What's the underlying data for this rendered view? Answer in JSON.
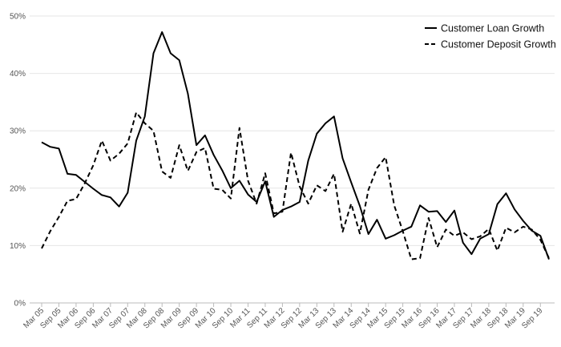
{
  "chart_data": {
    "type": "line",
    "categories": [
      "Mar 05",
      "Jun 05",
      "Sep 05",
      "Dec 05",
      "Mar 06",
      "Jun 06",
      "Sep 06",
      "Dec 06",
      "Mar 07",
      "Jun 07",
      "Sep 07",
      "Dec 07",
      "Mar 08",
      "Jun 08",
      "Sep 08",
      "Dec 08",
      "Mar 09",
      "Jun 09",
      "Sep 09",
      "Dec 09",
      "Mar 10",
      "Jun 10",
      "Sep 10",
      "Dec 10",
      "Mar 11",
      "Jun 11",
      "Sep 11",
      "Dec 11",
      "Mar 12",
      "Jun 12",
      "Sep 12",
      "Dec 12",
      "Mar 13",
      "Jun 13",
      "Sep 13",
      "Dec 13",
      "Mar 14",
      "Jun 14",
      "Sep 14",
      "Dec 14",
      "Mar 15",
      "Jun 15",
      "Sep 15",
      "Dec 15",
      "Mar 16",
      "Jun 16",
      "Sep 16",
      "Dec 16",
      "Mar 17",
      "Jun 17",
      "Sep 17",
      "Dec 17",
      "Mar 18",
      "Jun 18",
      "Sep 18",
      "Dec 18",
      "Mar 19",
      "Jun 19",
      "Sep 19",
      "Dec 19"
    ],
    "x_tick_labels": [
      "Mar 05",
      "Sep 05",
      "Mar 06",
      "Sep 06",
      "Mar 07",
      "Sep 07",
      "Mar 08",
      "Sep 08",
      "Mar 09",
      "Sep 09",
      "Mar 10",
      "Sep 10",
      "Mar 11",
      "Sep 11",
      "Mar 12",
      "Sep 12",
      "Mar 13",
      "Sep 13",
      "Mar 14",
      "Sep 14",
      "Mar 15",
      "Sep 15",
      "Mar 16",
      "Sep 16",
      "Mar 17",
      "Sep 17",
      "Mar 18",
      "Sep 18",
      "Mar 19",
      "Sep 19"
    ],
    "y_tick_labels": [
      "0%",
      "10%",
      "20%",
      "30%",
      "40%",
      "50%"
    ],
    "series": [
      {
        "name": "Customer Loan Growth",
        "style": "solid",
        "values": [
          28.0,
          27.2,
          26.9,
          22.5,
          22.3,
          21.1,
          19.9,
          18.8,
          18.4,
          16.8,
          19.2,
          28.3,
          32.5,
          43.5,
          47.2,
          43.5,
          42.3,
          36.5,
          27.5,
          29.2,
          25.8,
          23.1,
          20.0,
          21.3,
          18.9,
          17.6,
          21.2,
          15.0,
          16.2,
          16.8,
          17.6,
          24.8,
          29.5,
          31.3,
          32.5,
          25.2,
          21.0,
          16.9,
          12.0,
          14.5,
          11.2,
          11.8,
          12.6,
          13.3,
          17.0,
          15.9,
          16.0,
          14.1,
          16.1,
          10.5,
          8.5,
          11.2,
          12.0,
          17.2,
          19.1,
          16.3,
          14.3,
          12.6,
          11.7,
          7.6
        ]
      },
      {
        "name": "Customer Deposit Growth",
        "style": "dashed",
        "values": [
          9.5,
          12.5,
          15.0,
          17.8,
          18.1,
          20.8,
          24.0,
          28.3,
          24.8,
          26.0,
          27.8,
          33.2,
          31.3,
          30.0,
          22.9,
          21.8,
          27.5,
          23.0,
          26.3,
          27.0,
          19.9,
          19.7,
          18.2,
          30.5,
          21.3,
          17.3,
          22.6,
          15.6,
          15.9,
          26.2,
          20.3,
          17.3,
          20.5,
          19.5,
          22.5,
          12.4,
          17.3,
          12.1,
          19.7,
          23.5,
          25.4,
          17.0,
          12.5,
          7.6,
          7.8,
          14.8,
          9.7,
          12.8,
          11.7,
          12.3,
          11.1,
          11.6,
          12.9,
          9.1,
          13.1,
          12.3,
          13.3,
          12.8,
          11.0,
          7.8
        ]
      }
    ],
    "ylim": [
      0,
      50
    ],
    "y_tick_step": 10,
    "grid": "horizontal",
    "legend_position": "top-right",
    "line_color": "#000000",
    "grid_color": "#e6e6e6"
  }
}
